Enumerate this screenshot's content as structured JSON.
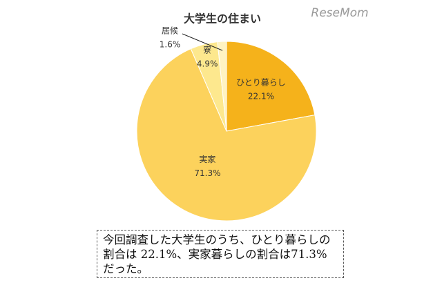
{
  "chart_data": {
    "type": "pie",
    "title": "大学生の住まい",
    "categories": [
      "ひとり暮らし",
      "実家",
      "寮",
      "居候"
    ],
    "values": [
      22.1,
      71.3,
      4.9,
      1.6
    ],
    "value_labels": [
      "22.1%",
      "71.3%",
      "4.9%",
      "1.6%"
    ],
    "colors": [
      "#f5b21b",
      "#fcd25c",
      "#fde88e",
      "#fff3c2"
    ]
  },
  "watermark": "ReseMom",
  "caption": "今回調査した大学生のうち、ひとり暮らしの割合は 22.1%、実家暮らしの割合は71.3%だった。"
}
